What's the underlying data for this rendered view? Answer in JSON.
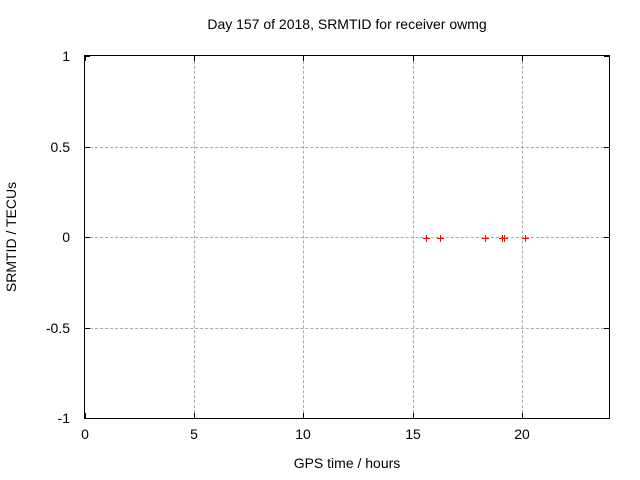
{
  "colors": {
    "marker": "#ff0000",
    "grid": "#a9a9a9",
    "frame": "#000000",
    "background": "#ffffff"
  },
  "chart_data": {
    "type": "scatter",
    "title": "Day 157 of 2018, SRMTID for receiver owmg",
    "xlabel": "GPS time / hours",
    "ylabel": "SRMTID / TECUs",
    "xlim": [
      0,
      24
    ],
    "ylim": [
      -1,
      1
    ],
    "grid": true,
    "legend": "none",
    "marker": "plus",
    "x_ticks": {
      "values": [
        0,
        5,
        10,
        15,
        20
      ],
      "labels": [
        "0",
        "5",
        "10",
        "15",
        "20"
      ]
    },
    "y_ticks": {
      "values": [
        1,
        0.5,
        0,
        -0.5,
        -1
      ],
      "labels": [
        "1",
        "0.5",
        "0",
        "-0.5",
        "-1"
      ]
    },
    "series": [
      {
        "name": "SRMTID",
        "points": [
          {
            "x": 15.6,
            "y": 0
          },
          {
            "x": 16.25,
            "y": 0
          },
          {
            "x": 18.3,
            "y": 0
          },
          {
            "x": 19.1,
            "y": 0
          },
          {
            "x": 19.2,
            "y": 0
          },
          {
            "x": 20.15,
            "y": 0
          }
        ]
      }
    ]
  }
}
